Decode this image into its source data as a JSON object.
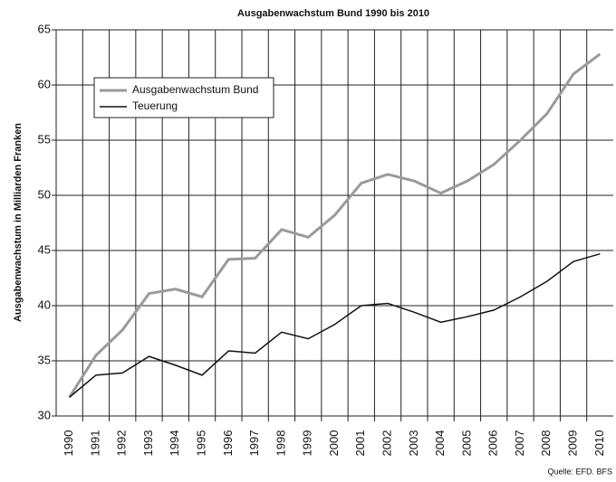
{
  "chart_data": {
    "type": "line",
    "title": "Ausgabenwachstum Bund 1990 bis 2010",
    "y_label": "Ausgabenwachstum in Milliarden Franken",
    "source": "Quelle: EFD. BFS",
    "categories": [
      "1990",
      "1991",
      "1992",
      "1993",
      "1994",
      "1995",
      "1996",
      "1997",
      "1998",
      "1999",
      "2000",
      "2001",
      "2002",
      "2003",
      "2004",
      "2005",
      "2006",
      "2007",
      "2008",
      "2009",
      "2010"
    ],
    "series": [
      {
        "name": "Ausgabenwachstum Bund",
        "color": "#9a9a9a",
        "width": 3,
        "values": [
          31.7,
          35.5,
          37.8,
          41.1,
          41.5,
          40.8,
          44.2,
          44.3,
          46.9,
          46.2,
          48.2,
          51.1,
          51.9,
          51.3,
          50.2,
          51.3,
          52.8,
          55.0,
          57.4,
          61.0,
          62.8
        ]
      },
      {
        "name": "Teuerung",
        "color": "#111111",
        "width": 1.5,
        "values": [
          31.7,
          33.7,
          33.9,
          35.4,
          34.6,
          33.7,
          35.9,
          35.7,
          37.6,
          37.0,
          38.3,
          40.0,
          40.2,
          39.4,
          38.5,
          39.0,
          39.6,
          40.8,
          42.2,
          44.0,
          44.7
        ]
      }
    ],
    "ylim": [
      30,
      65
    ],
    "yticks": [
      30,
      35,
      40,
      45,
      50,
      55,
      60,
      65
    ],
    "grid": true
  }
}
